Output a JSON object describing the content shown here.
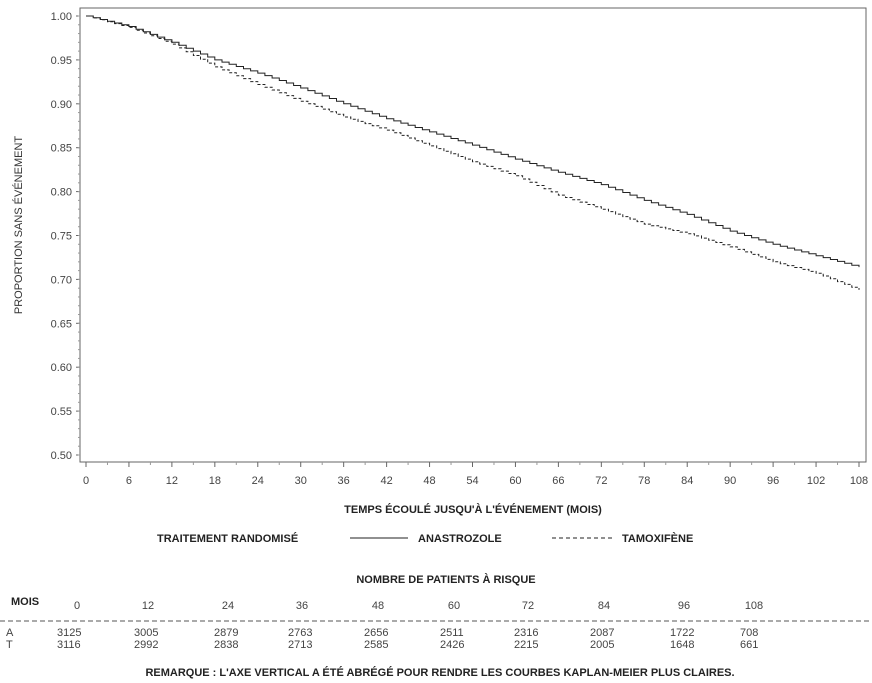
{
  "chart_data": {
    "type": "line",
    "ylabel": "PROPORTION SANS ÉVÉNEMENT",
    "xlabel": "TEMPS ÉCOULÉ JUSQU'À L'ÉVÉNEMENT (MOIS)",
    "xlim": [
      0,
      108
    ],
    "ylim": [
      0.5,
      1.0
    ],
    "xticks": [
      0,
      6,
      12,
      18,
      24,
      30,
      36,
      42,
      48,
      54,
      60,
      66,
      72,
      78,
      84,
      90,
      96,
      102,
      108
    ],
    "yticks": [
      "0.50",
      "0.55",
      "0.60",
      "0.65",
      "0.70",
      "0.75",
      "0.80",
      "0.85",
      "0.90",
      "0.95",
      "1.00"
    ],
    "legend": {
      "title": "TRAITEMENT RANDOMISÉ",
      "position": "bottom"
    },
    "series": [
      {
        "name": "ANASTROZOLE",
        "style": "solid",
        "x": [
          0,
          6,
          12,
          18,
          24,
          30,
          36,
          42,
          48,
          54,
          60,
          66,
          72,
          78,
          84,
          90,
          96,
          102,
          108
        ],
        "y": [
          1.0,
          0.988,
          0.97,
          0.95,
          0.935,
          0.918,
          0.9,
          0.883,
          0.868,
          0.853,
          0.837,
          0.822,
          0.808,
          0.79,
          0.774,
          0.755,
          0.74,
          0.727,
          0.714
        ]
      },
      {
        "name": "TAMOXIFÈNE",
        "style": "dashed",
        "x": [
          0,
          6,
          12,
          18,
          24,
          30,
          36,
          42,
          48,
          54,
          60,
          66,
          72,
          78,
          84,
          90,
          96,
          102,
          108
        ],
        "y": [
          1.0,
          0.987,
          0.968,
          0.942,
          0.922,
          0.903,
          0.885,
          0.87,
          0.852,
          0.834,
          0.818,
          0.796,
          0.78,
          0.763,
          0.752,
          0.737,
          0.72,
          0.707,
          0.688
        ]
      }
    ],
    "risk_table": {
      "title": "NOMBRE DE PATIENTS À RISQUE",
      "header_label": "MOIS",
      "months": [
        "0",
        "12",
        "24",
        "36",
        "48",
        "60",
        "72",
        "84",
        "96",
        "108"
      ],
      "rows": [
        {
          "label": "A",
          "values": [
            "3125",
            "3005",
            "2879",
            "2763",
            "2656",
            "2511",
            "2316",
            "2087",
            "1722",
            "708"
          ]
        },
        {
          "label": "T",
          "values": [
            "3116",
            "2992",
            "2838",
            "2713",
            "2585",
            "2426",
            "2215",
            "2005",
            "1648",
            "661"
          ]
        }
      ]
    },
    "note": "REMARQUE : L'AXE VERTICAL A ÉTÉ ABRÉGÉ POUR RENDRE LES COURBES KAPLAN-MEIER PLUS CLAIRES."
  }
}
